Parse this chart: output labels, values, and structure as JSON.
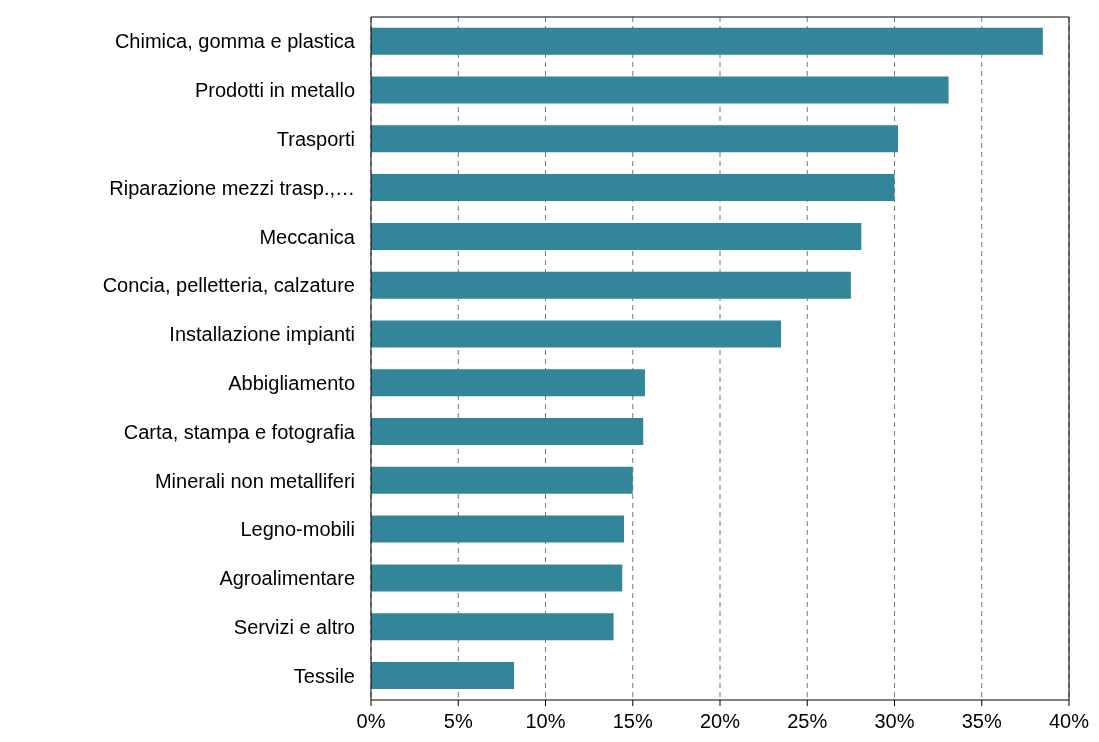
{
  "chart_data": {
    "type": "bar",
    "orientation": "horizontal",
    "categories": [
      "Chimica, gomma e plastica",
      "Prodotti in metallo",
      "Trasporti",
      "Riparazione mezzi trasp.,…",
      "Meccanica",
      "Concia, pelletteria, calzature",
      "Installazione impianti",
      "Abbigliamento",
      "Carta, stampa e fotografia",
      "Minerali non metalliferi",
      "Legno-mobili",
      "Agroalimentare",
      "Servizi e altro",
      "Tessile"
    ],
    "values": [
      38.5,
      33.1,
      30.2,
      30.0,
      28.1,
      27.5,
      23.5,
      15.7,
      15.6,
      15.0,
      14.5,
      14.4,
      13.9,
      8.2
    ],
    "color": "#338599",
    "xlim": [
      0,
      40
    ],
    "xticks": [
      {
        "value": 0,
        "label": "0%"
      },
      {
        "value": 5,
        "label": "5%"
      },
      {
        "value": 10,
        "label": "10%"
      },
      {
        "value": 15,
        "label": "15%"
      },
      {
        "value": 20,
        "label": "20%"
      },
      {
        "value": 25,
        "label": "25%"
      },
      {
        "value": 30,
        "label": "30%"
      },
      {
        "value": 35,
        "label": "35%"
      },
      {
        "value": 40,
        "label": "40%"
      }
    ],
    "grid": "x"
  }
}
